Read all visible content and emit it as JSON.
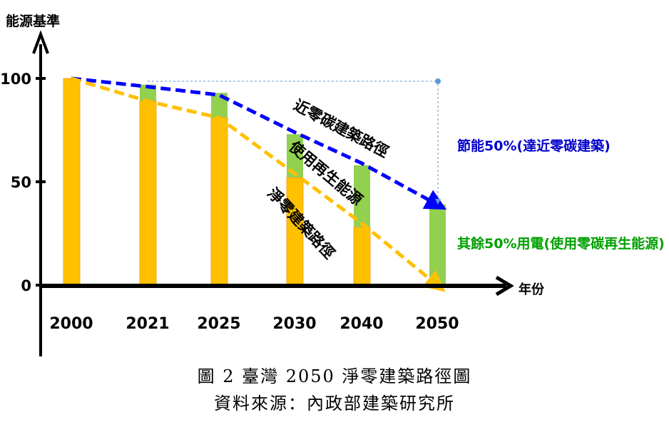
{
  "chart_data": {
    "type": "bar",
    "ylabel": "能源基準",
    "xlabel": "年份",
    "ylim": [
      0,
      100
    ],
    "yticks": [
      "100",
      "50",
      "0"
    ],
    "ytick_values": [
      100,
      50,
      0
    ],
    "categories": [
      "2000",
      "2021",
      "2025",
      "2030",
      "2040",
      "2050"
    ],
    "series": [
      {
        "name": "淨零建築路徑 (orange)",
        "color": "#FFC000",
        "values": [
          100,
          89,
          81,
          52,
          28,
          0
        ]
      },
      {
        "name": "使用再生能源 (green)",
        "color": "#92D050",
        "values": [
          100,
          97,
          93,
          73,
          58,
          39
        ]
      }
    ],
    "lines": [
      {
        "name": "近零碳建築路徑",
        "color": "#0000FF",
        "values": [
          100,
          96,
          92,
          74,
          59,
          39
        ]
      },
      {
        "name": "淨零建築路徑",
        "color": "#FFC000",
        "values": [
          100,
          89,
          81,
          54,
          30,
          0
        ]
      }
    ],
    "annotations": {
      "near_zero_path": "近零碳建築路徑",
      "renewable": "使用再生能源",
      "net_zero_path": "淨零建築路徑",
      "saving": "節能50%(達近零碳建築)",
      "remaining": "其餘50%用電(使用零碳再生能源)"
    },
    "annotation_colors": {
      "saving": "#0000CC",
      "remaining": "#00A000"
    }
  },
  "caption": {
    "title": "圖 2 臺灣 2050 淨零建築路徑圖",
    "source": "資料來源：內政部建築研究所"
  }
}
